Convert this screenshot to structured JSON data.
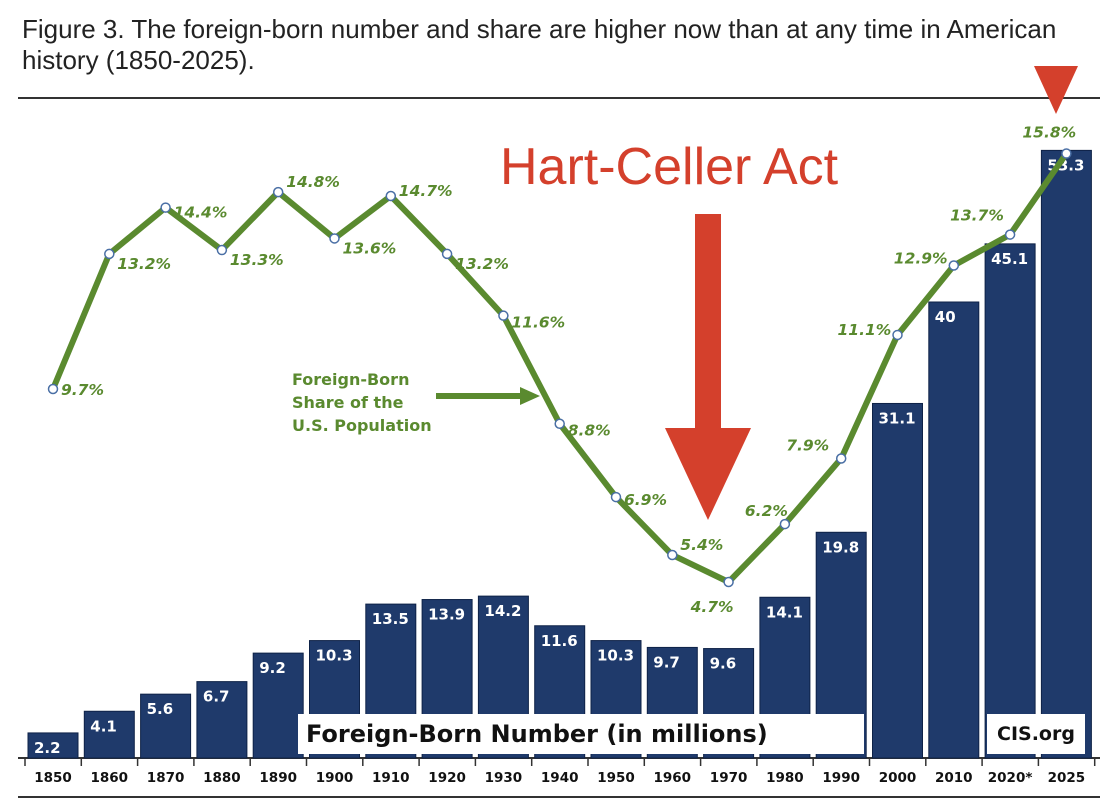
{
  "title": "Figure 3. The foreign-born number and share are higher now than at any time in American history (1850-2025).",
  "annotation_label": "Hart-Celler Act",
  "share_series_label": "Foreign-Born Share of the U.S. Population",
  "number_series_label": "Foreign-Born Number (in millions)",
  "source_label": "CIS.org",
  "colors": {
    "bar": "#1f3a6b",
    "line": "#5a8a2f",
    "annotation": "#d4402c"
  },
  "chart_data": {
    "type": "bar",
    "categories": [
      "1850",
      "1860",
      "1870",
      "1880",
      "1890",
      "1900",
      "1910",
      "1920",
      "1930",
      "1940",
      "1950",
      "1960",
      "1970",
      "1980",
      "1990",
      "2000",
      "2010",
      "2020*",
      "2025"
    ],
    "series": [
      {
        "name": "Foreign-Born Number (in millions)",
        "type": "bar",
        "values": [
          2.2,
          4.1,
          5.6,
          6.7,
          9.2,
          10.3,
          13.5,
          13.9,
          14.2,
          11.6,
          10.3,
          9.7,
          9.6,
          14.1,
          19.8,
          31.1,
          40,
          45.1,
          53.3
        ],
        "labels": [
          "2.2",
          "4.1",
          "5.6",
          "6.7",
          "9.2",
          "10.3",
          "13.5",
          "13.9",
          "14.2",
          "11.6",
          "10.3",
          "9.7",
          "9.6",
          "14.1",
          "19.8",
          "31.1",
          "40",
          "45.1",
          "53.3"
        ]
      },
      {
        "name": "Foreign-Born Share of the U.S. Population",
        "type": "line",
        "values": [
          9.7,
          13.2,
          14.4,
          13.3,
          14.8,
          13.6,
          14.7,
          13.2,
          11.6,
          8.8,
          6.9,
          5.4,
          4.7,
          6.2,
          7.9,
          11.1,
          12.9,
          13.7,
          15.8
        ],
        "labels": [
          "9.7%",
          "13.2%",
          "14.4%",
          "13.3%",
          "14.8%",
          "13.6%",
          "14.7%",
          "13.2%",
          "11.6%",
          "8.8%",
          "6.9%",
          "5.4%",
          "4.7%",
          "6.2%",
          "7.9%",
          "11.1%",
          "12.9%",
          "13.7%",
          "15.8%"
        ]
      }
    ],
    "annotations": [
      {
        "text": "Hart-Celler Act",
        "x": "1965",
        "marker": "down-arrow"
      }
    ],
    "grid": false,
    "legend": "inline"
  }
}
